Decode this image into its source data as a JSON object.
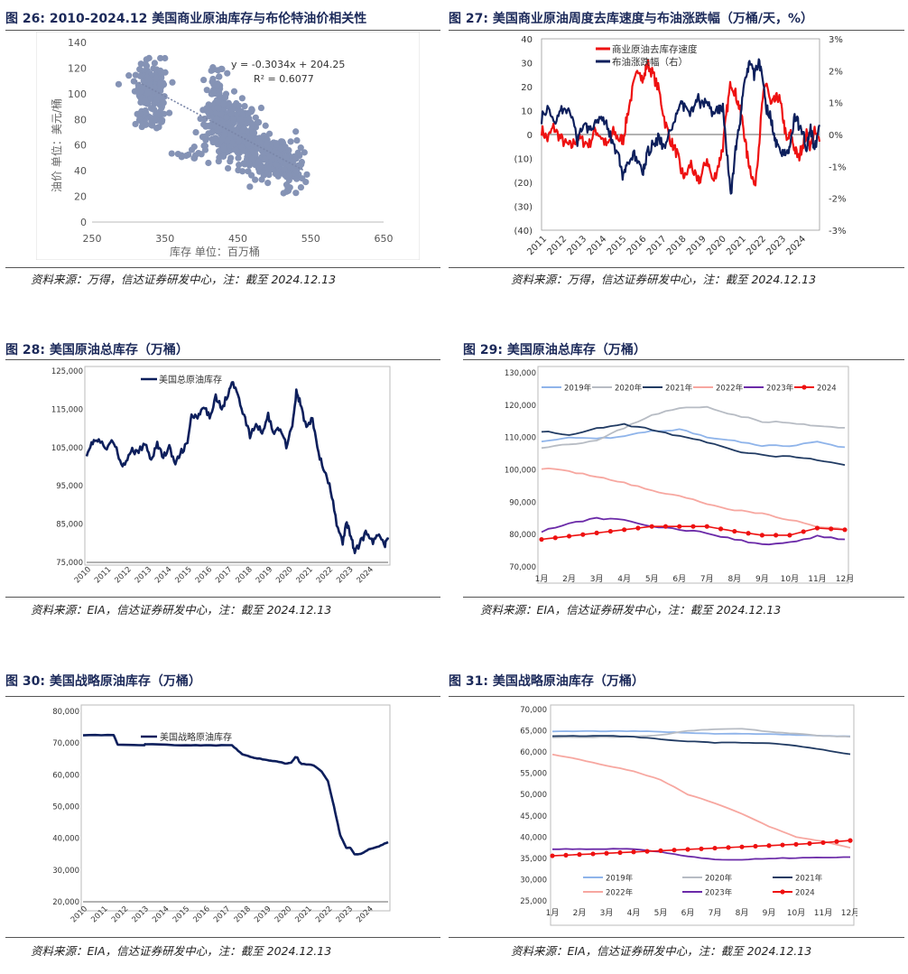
{
  "figures": [
    {
      "caption": "图 26:  2010-2024.12 美国商业原油库存与布伦特油价相关性",
      "source": "资料来源：万得，信达证券研发中心，注：截至 2024.12.13"
    },
    {
      "caption": "图 27:  美国商业原油周度去库速度与布油涨跌幅（万桶/天，%）",
      "source": "资料来源：万得，信达证券研发中心，注：截至 2024.12.13"
    },
    {
      "caption": "图 28:  美国原油总库存（万桶）",
      "source": "资料来源：EIA，信达证券研发中心，注：截至 2024.12.13"
    },
    {
      "caption": "图 29:  美国原油总库存（万桶）",
      "source": "资料来源：EIA，信达证券研发中心，注：截至 2024.12.13"
    },
    {
      "caption": "图 30:  美国战略原油库存（万桶）",
      "source": "资料来源：EIA，信达证券研发中心，注：截至 2024.12.13"
    },
    {
      "caption": "图 31:  美国战略原油库存（万桶）",
      "source": "资料来源：EIA，信达证券研发中心，注：截至 2024.12.13"
    }
  ],
  "colors": {
    "navy": "#0d1f5c",
    "red": "#ee1111",
    "scatter": "#8593b5",
    "c2019": "#8fb4ea",
    "c2020": "#b7bcc4",
    "c2021": "#213b63",
    "c2022": "#f7a7a0",
    "c2023": "#6b2aa8",
    "c2024": "#ee1111"
  },
  "chart_data": [
    {
      "id": "fig26",
      "type": "scatter",
      "xlabel": "库存 单位：百万桶",
      "ylabel": "油价 单位：美元/桶",
      "xlim": [
        250,
        650
      ],
      "ylim": [
        0,
        140
      ],
      "xticks": [
        "250",
        "350",
        "450",
        "550",
        "650"
      ],
      "yticks": [
        "0",
        "20",
        "40",
        "60",
        "80",
        "100",
        "120",
        "140"
      ],
      "equation": "y = -0.3034x + 204.25",
      "r2": "R² = 0.6077",
      "trendline": {
        "slope": -0.3034,
        "intercept": 204.25,
        "x_range": [
          310,
          540
        ]
      },
      "clusters": [
        {
          "cx": 330,
          "cy": 108,
          "sx": 11,
          "sy": 9,
          "n": 140
        },
        {
          "cx": 320,
          "cy": 80,
          "sx": 6,
          "sy": 5,
          "n": 25
        },
        {
          "cx": 340,
          "cy": 85,
          "sx": 6,
          "sy": 6,
          "n": 30
        },
        {
          "cx": 420,
          "cy": 95,
          "sx": 6,
          "sy": 14,
          "n": 60
        },
        {
          "cx": 430,
          "cy": 75,
          "sx": 15,
          "sy": 12,
          "n": 200
        },
        {
          "cx": 460,
          "cy": 65,
          "sx": 14,
          "sy": 10,
          "n": 160
        },
        {
          "cx": 495,
          "cy": 50,
          "sx": 17,
          "sy": 8,
          "n": 180
        },
        {
          "cx": 520,
          "cy": 40,
          "sx": 10,
          "sy": 9,
          "n": 60
        },
        {
          "cx": 380,
          "cy": 52,
          "sx": 15,
          "sy": 3,
          "n": 15
        }
      ]
    },
    {
      "id": "fig27",
      "type": "line",
      "xlim": [
        2011,
        2024.95
      ],
      "ylim": [
        -40,
        40
      ],
      "y2lim": [
        -3,
        3
      ],
      "xticks": [
        "2011",
        "2012",
        "2013",
        "2014",
        "2015",
        "2016",
        "2017",
        "2018",
        "2019",
        "2020",
        "2021",
        "2022",
        "2023",
        "2024"
      ],
      "yticks": [
        "40",
        "30",
        "20",
        "10",
        "0",
        "(10)",
        "(20)",
        "(30)",
        "(40)"
      ],
      "y2ticks": [
        "3%",
        "2%",
        "1%",
        "0%",
        "-1%",
        "-2%",
        "-3%"
      ],
      "series": [
        {
          "name": "商业原油去库存速度",
          "axis": "left",
          "x": [
            2011,
            2011.3,
            2011.6,
            2011.9,
            2012.2,
            2012.5,
            2012.8,
            2013.1,
            2013.4,
            2013.7,
            2014,
            2014.3,
            2014.6,
            2014.9,
            2015.1,
            2015.3,
            2015.6,
            2015.9,
            2016.1,
            2016.3,
            2016.6,
            2016.9,
            2017.2,
            2017.5,
            2017.8,
            2018,
            2018.2,
            2018.5,
            2018.8,
            2019,
            2019.3,
            2019.6,
            2019.9,
            2020.1,
            2020.3,
            2020.5,
            2020.7,
            2020.9,
            2021.1,
            2021.3,
            2021.5,
            2021.7,
            2021.9,
            2022.1,
            2022.3,
            2022.5,
            2022.7,
            2022.9,
            2023.1,
            2023.3,
            2023.5,
            2023.7,
            2023.9,
            2024.1,
            2024.3,
            2024.5,
            2024.7,
            2024.95
          ],
          "values": [
            2,
            -2,
            3,
            -1,
            -4,
            -5,
            -1,
            -3,
            -4,
            2,
            -1,
            -5,
            1,
            -2,
            -2,
            8,
            20,
            28,
            22,
            30,
            25,
            18,
            5,
            -3,
            -8,
            -15,
            -18,
            -12,
            -20,
            -18,
            -10,
            -20,
            -12,
            -5,
            10,
            22,
            18,
            12,
            5,
            -8,
            -15,
            -22,
            -5,
            15,
            22,
            12,
            14,
            16,
            8,
            -3,
            0,
            -6,
            -10,
            -4,
            0,
            -5,
            1,
            -3
          ]
        },
        {
          "name": "布油涨跌幅（右）",
          "axis": "right",
          "x": [
            2011,
            2011.3,
            2011.6,
            2011.9,
            2012.2,
            2012.5,
            2012.8,
            2013.1,
            2013.4,
            2013.7,
            2014,
            2014.3,
            2014.6,
            2014.9,
            2015.1,
            2015.3,
            2015.6,
            2015.9,
            2016.1,
            2016.3,
            2016.6,
            2016.9,
            2017.2,
            2017.5,
            2017.8,
            2018,
            2018.2,
            2018.5,
            2018.8,
            2019,
            2019.3,
            2019.6,
            2019.9,
            2020.1,
            2020.3,
            2020.5,
            2020.7,
            2020.9,
            2021.1,
            2021.3,
            2021.5,
            2021.7,
            2021.9,
            2022.1,
            2022.3,
            2022.5,
            2022.7,
            2022.9,
            2023.1,
            2023.3,
            2023.5,
            2023.7,
            2023.9,
            2024.1,
            2024.3,
            2024.5,
            2024.7,
            2024.95
          ],
          "values": [
            0.5,
            0.8,
            0.4,
            0.7,
            0.9,
            0.5,
            -0.2,
            0.3,
            0.2,
            0.4,
            0.6,
            0.3,
            -0.3,
            -0.8,
            -1.4,
            -1.0,
            -0.6,
            -1.0,
            -1.2,
            -0.6,
            -0.3,
            -0.1,
            -0.5,
            0.2,
            0.7,
            1.0,
            0.8,
            0.7,
            1.2,
            0.9,
            1.1,
            0.6,
            0.8,
            0.9,
            -0.6,
            -2.0,
            -0.6,
            0.1,
            1.2,
            2.0,
            2.2,
            1.8,
            2.4,
            1.6,
            0.8,
            0.6,
            -0.2,
            -0.3,
            -0.6,
            -0.7,
            -0.2,
            0.6,
            0.3,
            0.1,
            -0.4,
            0.2,
            -0.5,
            0.3
          ]
        }
      ]
    },
    {
      "id": "fig28",
      "type": "line",
      "xlim": [
        2010,
        2024.95
      ],
      "ylim": [
        75000,
        125000
      ],
      "xticks": [
        "2010",
        "2011",
        "2012",
        "2013",
        "2014",
        "2015",
        "2016",
        "2017",
        "2018",
        "2019",
        "2020",
        "2021",
        "2022",
        "2023",
        "2024"
      ],
      "yticks": [
        "125,000",
        "115,000",
        "105,000",
        "95,000",
        "85,000",
        "75,000"
      ],
      "series": [
        {
          "name": "美国总原油库存",
          "x": [
            2010,
            2010.3,
            2010.6,
            2011,
            2011.3,
            2011.6,
            2011.9,
            2012.2,
            2012.5,
            2012.9,
            2013.2,
            2013.5,
            2013.8,
            2014.1,
            2014.4,
            2014.7,
            2015,
            2015.2,
            2015.5,
            2015.8,
            2016.1,
            2016.4,
            2016.7,
            2017,
            2017.2,
            2017.5,
            2017.8,
            2018.1,
            2018.4,
            2018.7,
            2019,
            2019.3,
            2019.6,
            2019.9,
            2020.2,
            2020.4,
            2020.6,
            2020.9,
            2021.2,
            2021.5,
            2021.8,
            2022.1,
            2022.4,
            2022.7,
            2022.9,
            2023.1,
            2023.3,
            2023.6,
            2023.9,
            2024.2,
            2024.5,
            2024.8,
            2024.95
          ],
          "values": [
            103500,
            106500,
            106800,
            104500,
            107000,
            102500,
            99800,
            104500,
            103500,
            106000,
            102000,
            106000,
            102500,
            105000,
            100500,
            104000,
            106000,
            113500,
            112500,
            115500,
            113000,
            118500,
            115000,
            119000,
            122500,
            118500,
            113500,
            108000,
            111000,
            109000,
            113500,
            108500,
            110500,
            105500,
            111000,
            119500,
            116500,
            110000,
            112500,
            103500,
            98500,
            94000,
            85000,
            80000,
            85500,
            82000,
            77500,
            80500,
            83000,
            80000,
            83000,
            79500,
            81500
          ]
        }
      ]
    },
    {
      "id": "fig29",
      "type": "line",
      "categories": [
        "1月",
        "2月",
        "3月",
        "4月",
        "5月",
        "6月",
        "7月",
        "8月",
        "9月",
        "10月",
        "11月",
        "12月"
      ],
      "ylim": [
        70000,
        130000
      ],
      "yticks": [
        "130,000",
        "120,000",
        "110,000",
        "100,000",
        "90,000",
        "80,000",
        "70,000"
      ],
      "series": [
        {
          "name": "2019年",
          "values": [
            109000,
            110000,
            109500,
            110500,
            112000,
            112500,
            110000,
            109000,
            107500,
            107500,
            108500,
            107000
          ]
        },
        {
          "name": "2020年",
          "values": [
            107000,
            108000,
            109000,
            113000,
            117000,
            119000,
            119500,
            117000,
            115000,
            114500,
            113500,
            113000
          ]
        },
        {
          "name": "2021年",
          "values": [
            112000,
            110500,
            113000,
            114000,
            112500,
            110500,
            108500,
            106000,
            104500,
            104000,
            103000,
            101500
          ]
        },
        {
          "name": "2022年",
          "values": [
            100500,
            99500,
            98000,
            96000,
            93500,
            92000,
            89500,
            87500,
            86500,
            84500,
            82500,
            81500
          ]
        },
        {
          "name": "2023年",
          "values": [
            81000,
            83500,
            85000,
            84500,
            82500,
            81500,
            80500,
            78500,
            77000,
            77500,
            79500,
            78500
          ]
        },
        {
          "name": "2024",
          "values": [
            78500,
            79500,
            80500,
            81500,
            82500,
            82500,
            82500,
            81000,
            79800,
            79800,
            82000,
            81500
          ]
        }
      ]
    },
    {
      "id": "fig30",
      "type": "line",
      "xlim": [
        2010,
        2024.95
      ],
      "ylim": [
        20000,
        80000
      ],
      "xticks": [
        "2010",
        "2011",
        "2012",
        "2013",
        "2014",
        "2015",
        "2016",
        "2017",
        "2018",
        "2019",
        "2020",
        "2021",
        "2022",
        "2023",
        "2024"
      ],
      "yticks": [
        "80,000",
        "70,000",
        "60,000",
        "50,000",
        "40,000",
        "30,000",
        "20,000"
      ],
      "series": [
        {
          "name": "美国战略原油库存",
          "x": [
            2010,
            2011.5,
            2011.7,
            2013,
            2013.05,
            2014.8,
            2016,
            2017.3,
            2017.8,
            2018.3,
            2018.7,
            2019.2,
            2019.7,
            2019.9,
            2020.2,
            2020.4,
            2020.5,
            2020.6,
            2020.7,
            2021.3,
            2021.7,
            2022,
            2022.3,
            2022.6,
            2022.9,
            2023.1,
            2023.3,
            2023.6,
            2024,
            2024.5,
            2024.95
          ],
          "values": [
            72500,
            72500,
            69500,
            69300,
            69700,
            69300,
            69300,
            69300,
            66500,
            65500,
            65000,
            64500,
            64000,
            63500,
            63800,
            65500,
            65500,
            64000,
            63500,
            63000,
            61000,
            58000,
            50000,
            41000,
            37000,
            37000,
            35000,
            35000,
            36500,
            37500,
            38800
          ]
        }
      ]
    },
    {
      "id": "fig31",
      "type": "line",
      "categories": [
        "1月",
        "2月",
        "3月",
        "4月",
        "5月",
        "6月",
        "7月",
        "8月",
        "9月",
        "10月",
        "11月",
        "12月"
      ],
      "ylim": [
        25000,
        70000
      ],
      "yticks": [
        "70,000",
        "65,000",
        "60,000",
        "55,000",
        "50,000",
        "45,000",
        "40,000",
        "35,000",
        "30,000",
        "25,000"
      ],
      "series": [
        {
          "name": "2019年",
          "values": [
            64900,
            64900,
            64900,
            64900,
            64800,
            64500,
            64300,
            64300,
            64200,
            64000,
            63800,
            63700
          ]
        },
        {
          "name": "2020年",
          "values": [
            63500,
            63500,
            63500,
            63600,
            64000,
            65000,
            65400,
            65500,
            64800,
            64300,
            63800,
            63600
          ]
        },
        {
          "name": "2021年",
          "values": [
            63800,
            63800,
            63800,
            63600,
            63000,
            62500,
            62200,
            62200,
            62100,
            61500,
            60500,
            59500
          ]
        },
        {
          "name": "2022年",
          "values": [
            59500,
            58200,
            56800,
            55500,
            53500,
            50000,
            48000,
            45500,
            42500,
            40000,
            39000,
            37500
          ]
        },
        {
          "name": "2023年",
          "values": [
            37200,
            37200,
            37200,
            37200,
            36500,
            35500,
            34700,
            34700,
            35000,
            35100,
            35200,
            35300
          ]
        },
        {
          "name": "2024",
          "values": [
            35600,
            35900,
            36200,
            36500,
            36800,
            37100,
            37400,
            37700,
            38000,
            38300,
            38700,
            39200
          ]
        }
      ]
    }
  ]
}
